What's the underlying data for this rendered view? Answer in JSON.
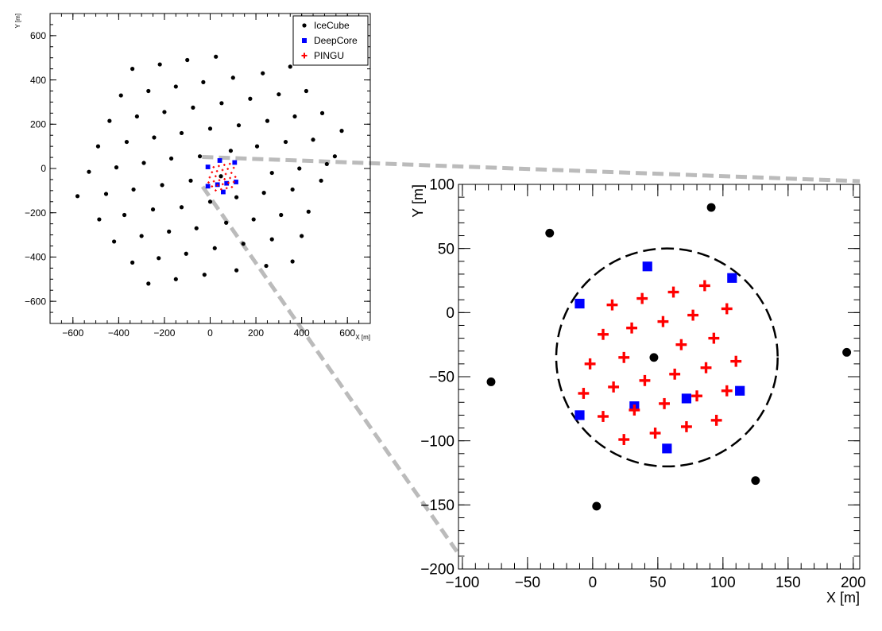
{
  "colors": {
    "icecube": "#000000",
    "deepcore": "#0000ff",
    "pingu": "#ff0000",
    "zoom_lines": "#bbbbbb"
  },
  "chart_data": [
    {
      "type": "scatter",
      "title": "",
      "xlabel": "X [m]",
      "ylabel": "Y [m]",
      "xlim": [
        -700,
        700
      ],
      "ylim": [
        -700,
        700
      ],
      "xticks": [
        -600,
        -400,
        -200,
        0,
        200,
        400,
        600
      ],
      "yticks": [
        -600,
        -400,
        -200,
        0,
        200,
        400,
        600
      ],
      "legend_position": "top-right",
      "grid": false,
      "series": [
        {
          "name": "IceCube",
          "marker": "circle",
          "points": [
            [
              -340,
              450
            ],
            [
              -220,
              470
            ],
            [
              -100,
              490
            ],
            [
              25,
              505
            ],
            [
              -390,
              330
            ],
            [
              -270,
              350
            ],
            [
              -150,
              370
            ],
            [
              -30,
              390
            ],
            [
              100,
              410
            ],
            [
              230,
              430
            ],
            [
              350,
              460
            ],
            [
              -440,
              215
            ],
            [
              -320,
              235
            ],
            [
              -200,
              255
            ],
            [
              -75,
              275
            ],
            [
              50,
              295
            ],
            [
              175,
              315
            ],
            [
              300,
              335
            ],
            [
              420,
              350
            ],
            [
              -490,
              100
            ],
            [
              -365,
              120
            ],
            [
              -245,
              140
            ],
            [
              -125,
              160
            ],
            [
              0,
              180
            ],
            [
              125,
              195
            ],
            [
              250,
              215
            ],
            [
              370,
              235
            ],
            [
              490,
              250
            ],
            [
              -530,
              -15
            ],
            [
              -410,
              5
            ],
            [
              -290,
              25
            ],
            [
              -170,
              45
            ],
            [
              -45,
              55
            ],
            [
              90,
              80
            ],
            [
              205,
              100
            ],
            [
              330,
              120
            ],
            [
              450,
              130
            ],
            [
              575,
              170
            ],
            [
              -580,
              -125
            ],
            [
              -455,
              -115
            ],
            [
              -335,
              -95
            ],
            [
              -210,
              -75
            ],
            [
              -85,
              -55
            ],
            [
              270,
              -20
            ],
            [
              390,
              0
            ],
            [
              510,
              20
            ],
            [
              545,
              55
            ],
            [
              -485,
              -230
            ],
            [
              -375,
              -210
            ],
            [
              -250,
              -185
            ],
            [
              -125,
              -175
            ],
            [
              0,
              -150
            ],
            [
              115,
              -130
            ],
            [
              235,
              -110
            ],
            [
              360,
              -95
            ],
            [
              485,
              -55
            ],
            [
              -420,
              -330
            ],
            [
              -300,
              -305
            ],
            [
              -180,
              -285
            ],
            [
              -60,
              -270
            ],
            [
              70,
              -245
            ],
            [
              190,
              -230
            ],
            [
              310,
              -210
            ],
            [
              430,
              -195
            ],
            [
              -340,
              -425
            ],
            [
              -225,
              -405
            ],
            [
              -105,
              -385
            ],
            [
              20,
              -360
            ],
            [
              145,
              -340
            ],
            [
              270,
              -320
            ],
            [
              400,
              -305
            ],
            [
              -270,
              -520
            ],
            [
              -150,
              -500
            ],
            [
              -25,
              -480
            ],
            [
              115,
              -460
            ],
            [
              245,
              -440
            ],
            [
              360,
              -420
            ],
            [
              47,
              -35
            ]
          ]
        },
        {
          "name": "DeepCore",
          "marker": "square",
          "points": [
            [
              -10,
              7
            ],
            [
              42,
              36
            ],
            [
              107,
              27
            ],
            [
              -10,
              -80
            ],
            [
              32,
              -73
            ],
            [
              72,
              -67
            ],
            [
              113,
              -61
            ],
            [
              57,
              -106
            ]
          ]
        },
        {
          "name": "PINGU",
          "marker": "cross",
          "points": [
            [
              15,
              6
            ],
            [
              38,
              11
            ],
            [
              62,
              16
            ],
            [
              86,
              21
            ],
            [
              103,
              3
            ],
            [
              8,
              -17
            ],
            [
              30,
              -12
            ],
            [
              54,
              -7
            ],
            [
              77,
              -2
            ],
            [
              -2,
              -40
            ],
            [
              24,
              -35
            ],
            [
              68,
              -25
            ],
            [
              93,
              -20
            ],
            [
              -7,
              -63
            ],
            [
              16,
              -58
            ],
            [
              40,
              -53
            ],
            [
              63,
              -48
            ],
            [
              87,
              -43
            ],
            [
              110,
              -38
            ],
            [
              8,
              -81
            ],
            [
              32,
              -76
            ],
            [
              55,
              -71
            ],
            [
              80,
              -65
            ],
            [
              103,
              -61
            ],
            [
              24,
              -99
            ],
            [
              48,
              -94
            ],
            [
              72,
              -89
            ],
            [
              95,
              -84
            ]
          ]
        }
      ]
    },
    {
      "type": "scatter",
      "title": "",
      "xlabel": "X [m]",
      "ylabel": "Y [m]",
      "xlim": [
        -103,
        205
      ],
      "ylim": [
        -200,
        100
      ],
      "xticks": [
        -100,
        -50,
        0,
        50,
        100,
        150,
        200
      ],
      "yticks": [
        -200,
        -150,
        -100,
        -50,
        0,
        50,
        100
      ],
      "grid": false,
      "annotations": [
        {
          "type": "dashed-circle",
          "center": [
            57,
            -35
          ],
          "radius": 85
        }
      ],
      "series": [
        {
          "name": "IceCube",
          "marker": "circle",
          "points": [
            [
              -33,
              62
            ],
            [
              91,
              82
            ],
            [
              -78,
              -54
            ],
            [
              47,
              -35
            ],
            [
              195,
              -31
            ],
            [
              125,
              -131
            ],
            [
              3,
              -151
            ]
          ]
        },
        {
          "name": "DeepCore",
          "marker": "square",
          "points": [
            [
              -10,
              7
            ],
            [
              42,
              36
            ],
            [
              107,
              27
            ],
            [
              -10,
              -80
            ],
            [
              32,
              -73
            ],
            [
              72,
              -67
            ],
            [
              113,
              -61
            ],
            [
              57,
              -106
            ]
          ]
        },
        {
          "name": "PINGU",
          "marker": "cross",
          "points": [
            [
              15,
              6
            ],
            [
              38,
              11
            ],
            [
              62,
              16
            ],
            [
              86,
              21
            ],
            [
              103,
              3
            ],
            [
              8,
              -17
            ],
            [
              30,
              -12
            ],
            [
              54,
              -7
            ],
            [
              77,
              -2
            ],
            [
              -2,
              -40
            ],
            [
              24,
              -35
            ],
            [
              68,
              -25
            ],
            [
              93,
              -20
            ],
            [
              -7,
              -63
            ],
            [
              16,
              -58
            ],
            [
              40,
              -53
            ],
            [
              63,
              -48
            ],
            [
              87,
              -43
            ],
            [
              110,
              -38
            ],
            [
              8,
              -81
            ],
            [
              32,
              -76
            ],
            [
              55,
              -71
            ],
            [
              80,
              -65
            ],
            [
              103,
              -61
            ],
            [
              24,
              -99
            ],
            [
              48,
              -94
            ],
            [
              72,
              -89
            ],
            [
              95,
              -84
            ]
          ]
        }
      ]
    }
  ]
}
